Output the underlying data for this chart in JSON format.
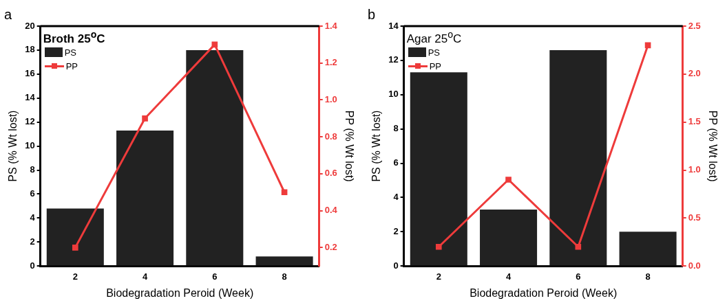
{
  "chart_data": [
    {
      "type": "bar",
      "title": "a",
      "xlabel": "Biodegradation Peroid (Week)",
      "ylabel": "PS (% Wt lost)",
      "y2label": "PP (% Wt lost)",
      "annotations": [
        "Broth 25$^{o}$C"
      ],
      "categories": [
        "2",
        "4",
        "6",
        "8"
      ],
      "series": [
        {
          "name": "PS",
          "color": "#222222",
          "values": [
            4.8,
            11.3,
            18.0,
            0.8
          ]
        },
        {
          "name": "PP",
          "type": "line",
          "axis": "y2",
          "color": "#ee3b3b",
          "values": [
            0.2,
            0.9,
            1.3,
            0.5
          ]
        }
      ],
      "ylim": [
        0,
        20
      ],
      "yticks": [
        0,
        2,
        4,
        6,
        8,
        10,
        12,
        14,
        16,
        18,
        20
      ],
      "y2lim": [
        0.1,
        1.4
      ],
      "y2ticks": [
        {
          "value": 0.2,
          "label": "0.2"
        },
        {
          "value": 0.4,
          "label": "0.4"
        },
        {
          "value": 0.6,
          "label": "0.6"
        },
        {
          "value": 0.8,
          "label": "0.8"
        },
        {
          "value": 1,
          "label": "1.0"
        },
        {
          "value": 1.2,
          "label": "1.2"
        },
        {
          "value": 1.4,
          "label": "1.4"
        }
      ],
      "legend": "top left",
      "marker": "square",
      "line_style": "solid",
      "grid": false
    },
    {
      "type": "bar",
      "title": "b",
      "xlabel": "Biodegradation Peroid (Week)",
      "ylabel": "PS (% Wt lost)",
      "y2label": "PP (% Wt lost)",
      "annotations": [
        "Agar 25$^{o}$C"
      ],
      "categories": [
        "2",
        "4",
        "6",
        "8"
      ],
      "series": [
        {
          "name": "PS",
          "color": "#222222",
          "values": [
            11.3,
            3.3,
            12.6,
            2.0
          ]
        },
        {
          "name": "PP",
          "type": "line",
          "axis": "y2",
          "color": "#ee3b3b",
          "values": [
            0.2,
            0.9,
            0.2,
            2.3
          ]
        }
      ],
      "ylim": [
        0,
        14
      ],
      "yticks": [
        0,
        2,
        4,
        6,
        8,
        10,
        12,
        14
      ],
      "y2lim": [
        0,
        2.5
      ],
      "y2ticks": [
        {
          "value": 0,
          "label": "0.0"
        },
        {
          "value": 0.5,
          "label": "0.5"
        },
        {
          "value": 1,
          "label": "1.0"
        },
        {
          "value": 1.5,
          "label": "1.5"
        },
        {
          "value": 2,
          "label": "2.0"
        },
        {
          "value": 2.5,
          "label": "2.5"
        }
      ],
      "legend": "top left",
      "marker": "square",
      "line_style": "solid",
      "grid": false
    }
  ]
}
